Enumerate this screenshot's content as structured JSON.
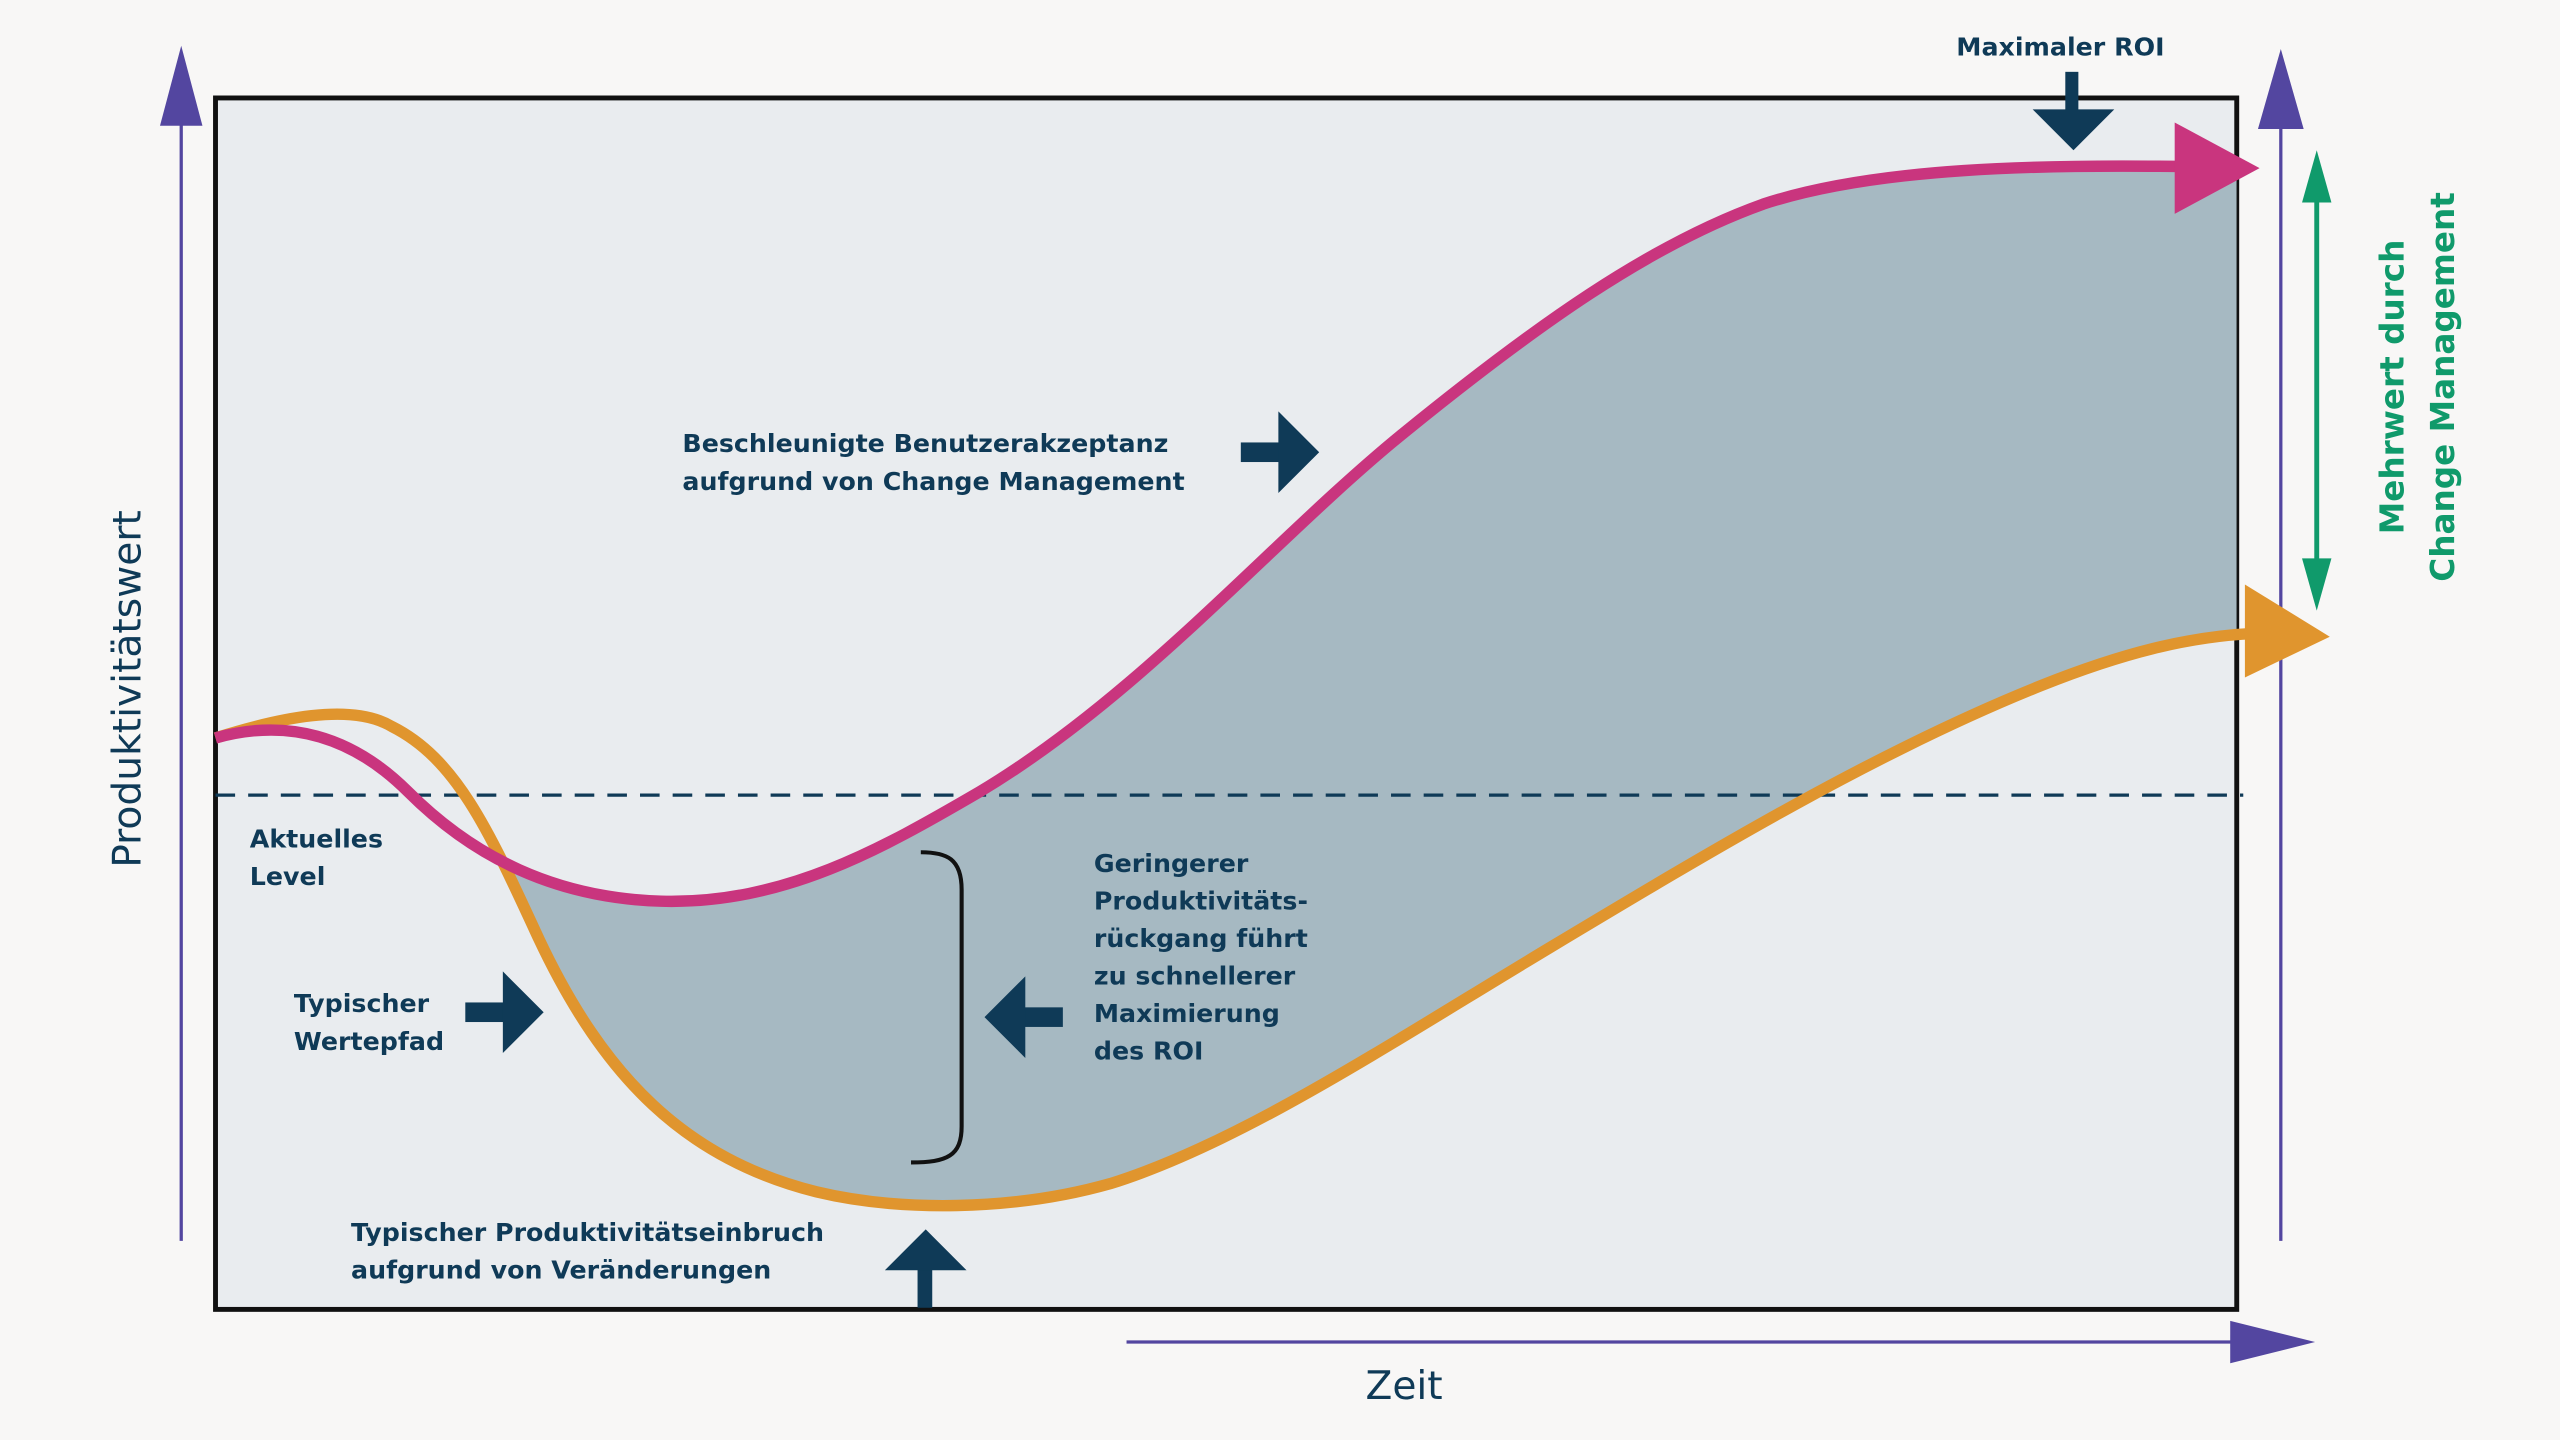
{
  "colors": {
    "accelerated_curve": "#c9357e",
    "typical_curve": "#e0952e",
    "gain_area": "#a6b9c2",
    "plot_background": "#e9ecef",
    "axis": "#5346a0",
    "annotation": "#0f3a57",
    "added_value": "#109a6b"
  },
  "axes": {
    "y_label": "Produktivitätswert",
    "x_label": "Zeit"
  },
  "annotations": {
    "max_roi": "Maximaler ROI",
    "accelerated_line1": "Beschleunigte Benutzerakzeptanz",
    "accelerated_line2": "aufgrund von Change Management",
    "current_level_line1": "Aktuelles",
    "current_level_line2": "Level",
    "typical_path_line1": "Typischer",
    "typical_path_line2": "Wertepfad",
    "smaller_drop_lines": [
      "Geringerer",
      "Produktivitäts-",
      "rückgang führt",
      "zu schnellerer",
      "Maximierung",
      "des ROI"
    ],
    "typical_drop_line1": "Typischer Produktivitätseinbruch",
    "typical_drop_line2": "aufgrund von Veränderungen",
    "added_value_line1": "Mehrwert durch",
    "added_value_line2": "Change Management"
  }
}
